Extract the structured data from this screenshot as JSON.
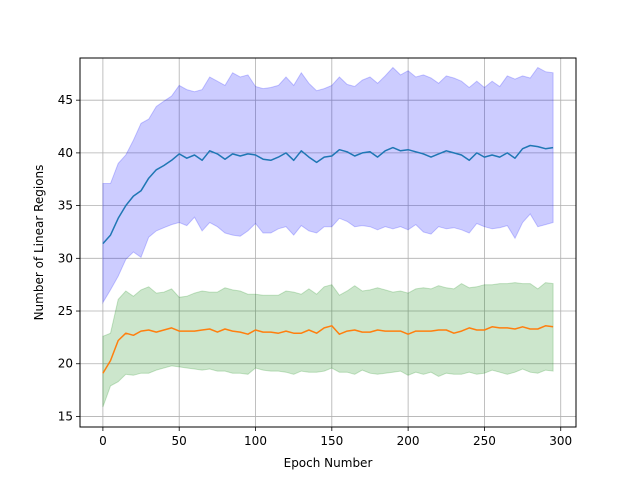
{
  "chart_data": {
    "type": "line",
    "xlabel": "Epoch Number",
    "ylabel": "Number of Linear Regions",
    "xlim": [
      -15,
      310
    ],
    "ylim": [
      14,
      49
    ],
    "xticks": [
      0,
      50,
      100,
      150,
      200,
      250,
      300
    ],
    "yticks": [
      15,
      20,
      25,
      30,
      35,
      40,
      45
    ],
    "grid": true,
    "x": [
      0,
      5,
      10,
      15,
      20,
      25,
      30,
      35,
      40,
      45,
      50,
      55,
      60,
      65,
      70,
      75,
      80,
      85,
      90,
      95,
      100,
      105,
      110,
      115,
      120,
      125,
      130,
      135,
      140,
      145,
      150,
      155,
      160,
      165,
      170,
      175,
      180,
      185,
      190,
      195,
      200,
      205,
      210,
      215,
      220,
      225,
      230,
      235,
      240,
      245,
      250,
      255,
      260,
      265,
      270,
      275,
      280,
      285,
      290,
      295
    ],
    "series": [
      {
        "color": "#1f77b4",
        "band_color": "#0000ff",
        "values": [
          31.4,
          32.2,
          33.8,
          35.0,
          35.9,
          36.4,
          37.6,
          38.4,
          38.8,
          39.3,
          39.9,
          39.5,
          39.8,
          39.3,
          40.2,
          39.9,
          39.4,
          39.9,
          39.7,
          39.9,
          39.8,
          39.4,
          39.3,
          39.6,
          40.0,
          39.3,
          40.2,
          39.6,
          39.1,
          39.6,
          39.7,
          40.3,
          40.1,
          39.7,
          40.0,
          40.1,
          39.6,
          40.2,
          40.5,
          40.2,
          40.3,
          40.1,
          39.9,
          39.6,
          39.9,
          40.2,
          40.0,
          39.8,
          39.3,
          40.0,
          39.6,
          39.8,
          39.6,
          40.0,
          39.5,
          40.4,
          40.7,
          40.6,
          40.4,
          40.5
        ],
        "upper": [
          37.1,
          37.1,
          39.0,
          39.8,
          41.2,
          42.8,
          43.2,
          44.4,
          44.9,
          45.4,
          46.4,
          46.0,
          45.8,
          46.0,
          47.2,
          46.8,
          46.4,
          47.6,
          47.2,
          47.4,
          46.3,
          46.1,
          46.2,
          46.4,
          47.2,
          46.4,
          47.6,
          46.6,
          45.9,
          46.1,
          46.4,
          47.2,
          46.5,
          46.3,
          46.9,
          47.2,
          46.6,
          47.3,
          48.1,
          47.4,
          47.8,
          47.2,
          47.4,
          47.1,
          46.6,
          47.3,
          47.1,
          46.8,
          46.2,
          46.8,
          46.2,
          46.8,
          46.3,
          47.3,
          47.0,
          47.3,
          47.1,
          48.1,
          47.7,
          47.6
        ],
        "lower": [
          25.8,
          27.0,
          28.3,
          29.9,
          30.6,
          30.1,
          32.0,
          32.6,
          32.9,
          33.2,
          33.4,
          33.1,
          33.9,
          32.6,
          33.4,
          33.0,
          32.4,
          32.2,
          32.1,
          32.6,
          33.3,
          32.4,
          32.4,
          32.8,
          33.0,
          32.2,
          33.1,
          32.6,
          32.4,
          33.0,
          33.0,
          33.8,
          33.5,
          33.0,
          33.1,
          33.0,
          32.7,
          33.0,
          32.8,
          33.0,
          32.7,
          33.2,
          32.5,
          32.3,
          33.0,
          32.8,
          32.9,
          32.7,
          32.4,
          33.3,
          33.0,
          32.8,
          32.9,
          33.1,
          31.9,
          33.4,
          34.2,
          33.0,
          33.2,
          33.4
        ]
      },
      {
        "color": "#ff7f0e",
        "band_color": "#008000",
        "values": [
          19.1,
          20.3,
          22.2,
          22.9,
          22.7,
          23.1,
          23.2,
          23.0,
          23.2,
          23.4,
          23.1,
          23.1,
          23.1,
          23.2,
          23.3,
          23.0,
          23.3,
          23.1,
          23.0,
          22.8,
          23.2,
          23.0,
          23.0,
          22.9,
          23.1,
          22.9,
          22.9,
          23.2,
          22.9,
          23.4,
          23.6,
          22.8,
          23.1,
          23.2,
          23.0,
          23.0,
          23.2,
          23.1,
          23.1,
          23.1,
          22.8,
          23.1,
          23.1,
          23.1,
          23.2,
          23.2,
          22.9,
          23.1,
          23.4,
          23.2,
          23.2,
          23.5,
          23.4,
          23.4,
          23.3,
          23.5,
          23.3,
          23.3,
          23.6,
          23.5
        ],
        "upper": [
          22.6,
          22.9,
          26.1,
          26.9,
          26.4,
          27.0,
          27.3,
          26.7,
          26.8,
          27.1,
          26.3,
          26.4,
          26.7,
          26.9,
          26.8,
          26.8,
          27.2,
          27.0,
          26.9,
          26.6,
          26.6,
          26.5,
          26.5,
          26.5,
          26.9,
          26.8,
          26.6,
          27.1,
          26.6,
          27.3,
          27.5,
          26.5,
          26.9,
          27.4,
          26.9,
          27.0,
          27.2,
          27.0,
          26.8,
          26.9,
          26.7,
          27.1,
          27.2,
          27.1,
          27.4,
          27.2,
          27.1,
          27.6,
          27.2,
          27.3,
          27.5,
          27.5,
          27.6,
          27.6,
          27.7,
          27.6,
          27.6,
          27.1,
          27.7,
          27.6
        ],
        "lower": [
          15.9,
          17.9,
          18.3,
          19.0,
          18.9,
          19.1,
          19.1,
          19.4,
          19.6,
          19.8,
          19.7,
          19.6,
          19.5,
          19.4,
          19.5,
          19.3,
          19.3,
          19.1,
          19.1,
          19.0,
          19.6,
          19.4,
          19.3,
          19.3,
          19.2,
          19.0,
          19.3,
          19.2,
          19.2,
          19.3,
          19.6,
          19.2,
          19.2,
          19.0,
          19.4,
          19.1,
          19.0,
          19.1,
          19.2,
          19.3,
          18.9,
          19.2,
          19.0,
          19.2,
          18.8,
          19.1,
          19.0,
          19.0,
          19.2,
          19.0,
          19.1,
          19.4,
          19.2,
          19.0,
          19.2,
          19.5,
          19.2,
          19.1,
          19.4,
          19.3
        ]
      }
    ]
  }
}
